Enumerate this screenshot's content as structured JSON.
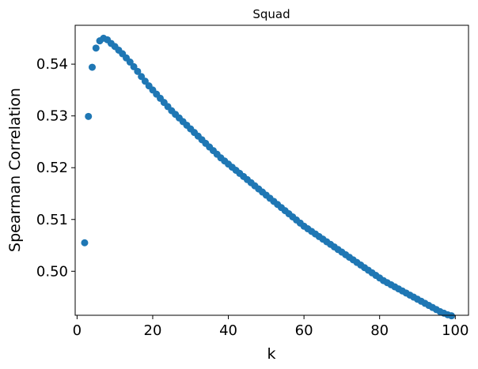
{
  "chart_data": {
    "type": "scatter",
    "title": "Squad",
    "xlabel": "k",
    "ylabel": "Spearman Correlation",
    "xlim": [
      -0.5,
      103.5
    ],
    "ylim": [
      0.4915,
      0.5475
    ],
    "xticks": [
      0,
      20,
      40,
      60,
      80,
      100
    ],
    "xtick_labels": [
      "0",
      "20",
      "40",
      "60",
      "80",
      "100"
    ],
    "yticks": [
      0.5,
      0.51,
      0.52,
      0.53,
      0.54
    ],
    "ytick_labels": [
      "0.50",
      "0.51",
      "0.52",
      "0.53",
      "0.54"
    ],
    "grid": false,
    "legend": "none",
    "color": "#1f77b4",
    "series": [
      {
        "x": [
          2,
          3,
          4,
          5,
          6,
          7,
          8,
          9,
          10,
          11,
          12,
          13,
          14,
          15,
          16,
          17,
          18,
          19,
          20,
          21,
          22,
          23,
          24,
          25,
          26,
          27,
          28,
          29,
          30,
          31,
          32,
          33,
          34,
          35,
          36,
          37,
          38,
          39,
          40,
          41,
          42,
          43,
          44,
          45,
          46,
          47,
          48,
          49,
          50,
          51,
          52,
          53,
          54,
          55,
          56,
          57,
          58,
          59,
          60,
          61,
          62,
          63,
          64,
          65,
          66,
          67,
          68,
          69,
          70,
          71,
          72,
          73,
          74,
          75,
          76,
          77,
          78,
          79,
          80,
          81,
          82,
          83,
          84,
          85,
          86,
          87,
          88,
          89,
          90,
          91,
          92,
          93,
          94,
          95,
          96,
          97,
          98,
          99
        ],
        "y": [
          0.5055,
          0.5299,
          0.5394,
          0.5431,
          0.5445,
          0.545,
          0.5447,
          0.544,
          0.5434,
          0.5427,
          0.542,
          0.5412,
          0.5404,
          0.5395,
          0.5386,
          0.5376,
          0.5367,
          0.5358,
          0.535,
          0.5342,
          0.5334,
          0.5326,
          0.5318,
          0.531,
          0.5303,
          0.5296,
          0.5289,
          0.5282,
          0.5275,
          0.5268,
          0.5261,
          0.5254,
          0.5247,
          0.524,
          0.5233,
          0.5226,
          0.5219,
          0.5213,
          0.5207,
          0.5201,
          0.5195,
          0.5189,
          0.5183,
          0.5177,
          0.5171,
          0.5165,
          0.5159,
          0.5153,
          0.5147,
          0.5141,
          0.5135,
          0.5129,
          0.5123,
          0.5117,
          0.5111,
          0.5105,
          0.5099,
          0.5093,
          0.5087,
          0.5082,
          0.5077,
          0.5072,
          0.5067,
          0.5062,
          0.5057,
          0.5052,
          0.5047,
          0.5042,
          0.5037,
          0.5032,
          0.5027,
          0.5022,
          0.5017,
          0.5012,
          0.5007,
          0.5002,
          0.4997,
          0.4992,
          0.4987,
          0.4982,
          0.4978,
          0.4974,
          0.497,
          0.4966,
          0.4962,
          0.4958,
          0.4954,
          0.495,
          0.4946,
          0.4942,
          0.4938,
          0.4934,
          0.493,
          0.4926,
          0.4922,
          0.4919,
          0.4916,
          0.4914
        ]
      }
    ]
  }
}
